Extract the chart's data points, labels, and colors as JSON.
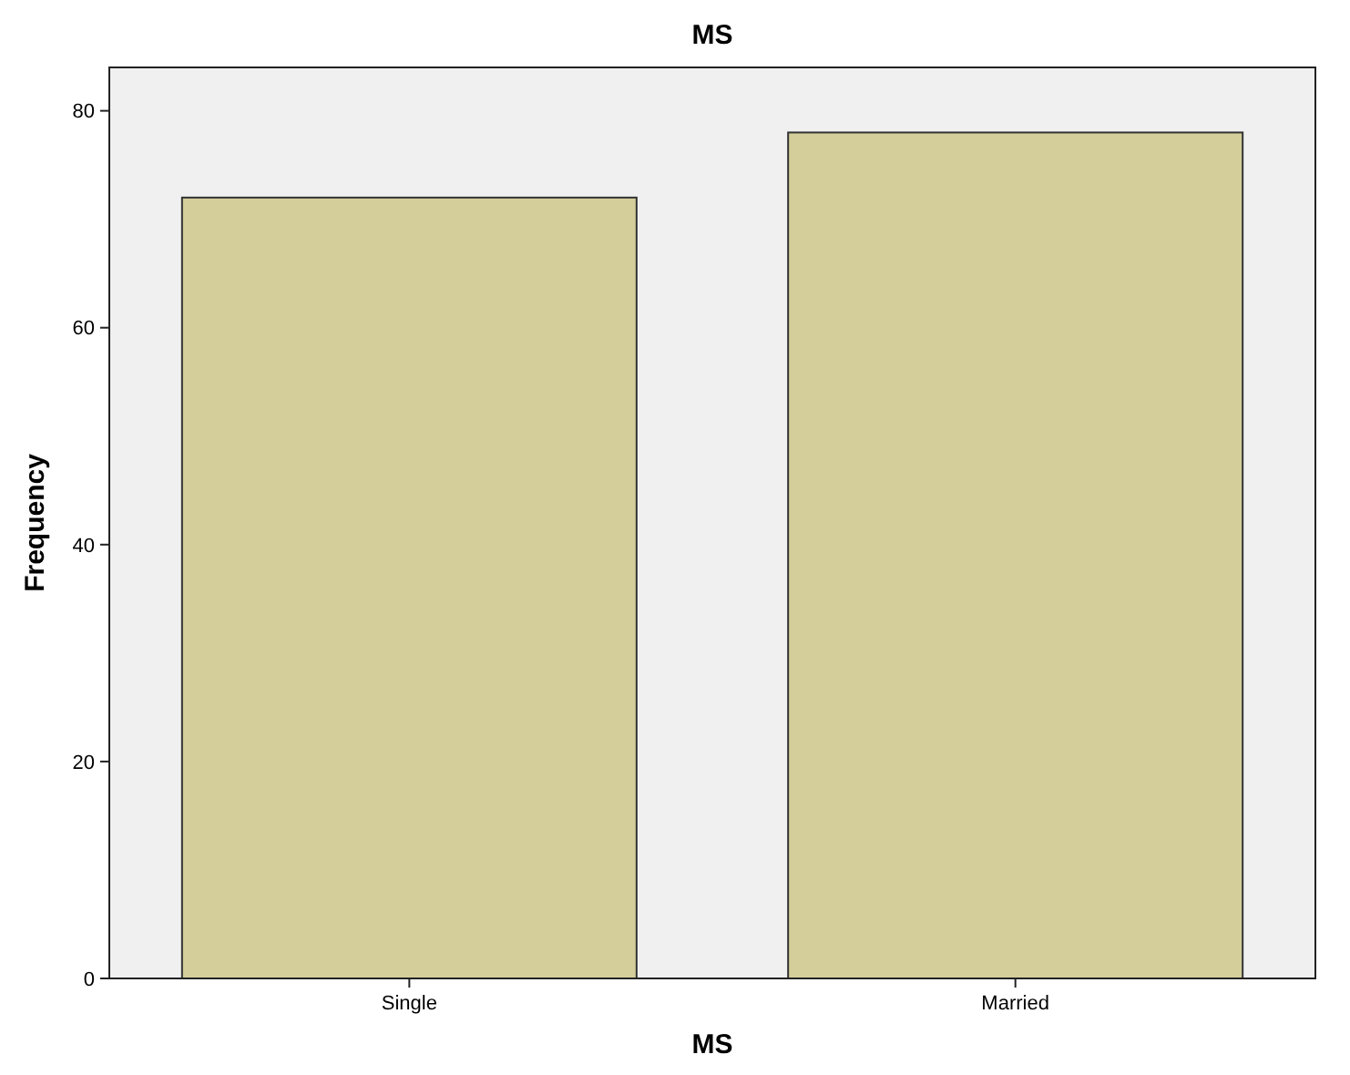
{
  "chart_data": {
    "type": "bar",
    "title": "MS",
    "xlabel": "MS",
    "ylabel": "Frequency",
    "categories": [
      "Single",
      "Married"
    ],
    "values": [
      72,
      78
    ],
    "color": "#d3ce9a",
    "ylim": [
      0,
      84
    ],
    "yticks": [
      0,
      20,
      40,
      60,
      80
    ],
    "grid": false
  }
}
